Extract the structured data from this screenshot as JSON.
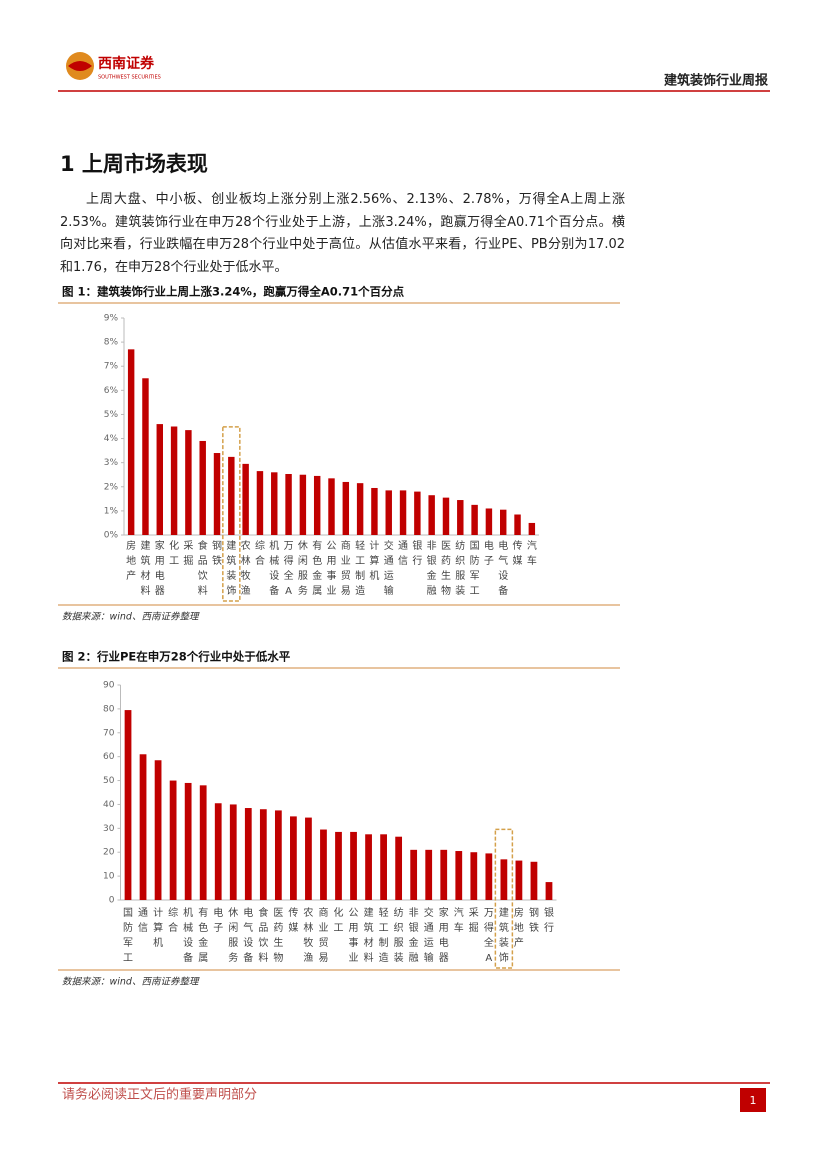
{
  "header": {
    "logo_text": "西南证券",
    "logo_subtext": "SOUTHWEST SECURITIES",
    "report_title": "建筑装饰行业周报"
  },
  "section": {
    "title": "1 上周市场表现",
    "paragraph": "上周大盘、中小板、创业板均上涨分别上涨2.56%、2.13%、2.78%，万得全A上周上涨2.53%。建筑装饰行业在申万28个行业处于上游，上涨3.24%，跑赢万得全A0.71个百分点。横向对比来看，行业跌幅在申万28个行业中处于高位。从估值水平来看，行业PE、PB分别为17.02和1.76，在申万28个行业处于低水平。"
  },
  "chart_data": [
    {
      "type": "bar",
      "title": "图 1：建筑装饰行业上周上涨3.24%，跑赢万得全A0.71个百分点",
      "categories": [
        "房地产",
        "建筑材料",
        "家用电器",
        "化工",
        "采掘",
        "食品饮料",
        "钢铁",
        "建筑装饰",
        "农林牧渔",
        "综合",
        "机械设备",
        "万得全A",
        "休闲服务",
        "有色金属",
        "公用事业",
        "商业贸易",
        "轻工制造",
        "计算机",
        "交通运输",
        "通信",
        "银行",
        "非银金融",
        "医药生物",
        "纺织服装",
        "国防军工",
        "电子",
        "电气设备",
        "传媒",
        "汽车"
      ],
      "values": [
        7.7,
        6.5,
        4.6,
        4.5,
        4.35,
        3.9,
        3.4,
        3.24,
        2.95,
        2.65,
        2.6,
        2.53,
        2.5,
        2.45,
        2.35,
        2.2,
        2.15,
        1.95,
        1.85,
        1.85,
        1.8,
        1.65,
        1.55,
        1.45,
        1.25,
        1.1,
        1.05,
        0.85,
        0.5
      ],
      "color": "#c00000",
      "ylim": [
        0,
        9
      ],
      "yticks": [
        {
          "value": 0,
          "label": "0%"
        },
        {
          "value": 1,
          "label": "1%"
        },
        {
          "value": 2,
          "label": "2%"
        },
        {
          "value": 3,
          "label": "3%"
        },
        {
          "value": 4,
          "label": "4%"
        },
        {
          "value": 5,
          "label": "5%"
        },
        {
          "value": 6,
          "label": "6%"
        },
        {
          "value": 7,
          "label": "7%"
        },
        {
          "value": 8,
          "label": "8%"
        },
        {
          "value": 9,
          "label": "9%"
        }
      ],
      "highlight_index": 7,
      "highlight_color": "#d4a04a",
      "source": "数据来源：wind、西南证券整理"
    },
    {
      "type": "bar",
      "title": "图 2：行业PE在申万28个行业中处于低水平",
      "categories": [
        "国防军工",
        "通信",
        "计算机",
        "综合",
        "机械设备",
        "有色金属",
        "电子",
        "休闲服务",
        "电气设备",
        "食品饮料",
        "医药生物",
        "传媒",
        "农林牧渔",
        "商业贸易",
        "化工",
        "公用事业",
        "建筑材料",
        "轻工制造",
        "纺织服装",
        "非银金融",
        "交通运输",
        "家用电器",
        "汽车",
        "采掘",
        "万得全A",
        "建筑装饰",
        "房地产",
        "钢铁",
        "银行"
      ],
      "values": [
        79.5,
        61,
        58.5,
        50,
        49,
        48,
        40.5,
        40,
        38.5,
        38,
        37.5,
        35,
        34.5,
        29.5,
        28.5,
        28.5,
        27.5,
        27.5,
        26.5,
        21,
        21,
        21,
        20.5,
        20,
        19.5,
        17.02,
        16.5,
        16,
        7.5
      ],
      "color": "#c00000",
      "ylim": [
        0,
        90
      ],
      "yticks": [
        0,
        10,
        20,
        30,
        40,
        50,
        60,
        70,
        80,
        90
      ],
      "highlight_index": 25,
      "highlight_color": "#d4a04a",
      "source": "数据来源：wind、西南证券整理"
    }
  ],
  "footer": {
    "notice": "请务必阅读正文后的重要声明部分",
    "page": "1"
  }
}
